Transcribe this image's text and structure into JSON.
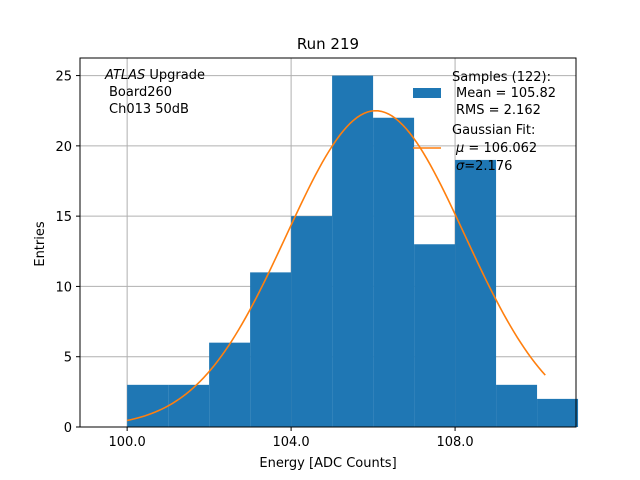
{
  "chart_data": {
    "type": "bar",
    "title": "Run 219",
    "xlabel": "Energy [ADC Counts]",
    "ylabel": "Entries",
    "xlim": [
      98.85,
      110.95
    ],
    "ylim": [
      0,
      26.25
    ],
    "x_ticks": [
      100.0,
      104.0,
      108.0
    ],
    "x_tick_labels": [
      "100.0",
      "104.0",
      "108.0"
    ],
    "y_ticks": [
      0,
      5,
      10,
      15,
      20,
      25
    ],
    "y_tick_labels": [
      "0",
      "5",
      "10",
      "15",
      "20",
      "25"
    ],
    "grid": true,
    "bin_edges": [
      100.0,
      101.0,
      102.0,
      103.0,
      104.0,
      105.0,
      106.0,
      107.0,
      108.0,
      109.0,
      110.0,
      111.0
    ],
    "values": [
      3,
      3,
      6,
      11,
      15,
      25,
      22,
      13,
      19,
      3,
      2
    ],
    "hist_color": "#1f77b4",
    "fit": {
      "mu": 106.062,
      "sigma": 2.176,
      "amplitude": 22.5,
      "x_range": [
        100.0,
        110.2
      ],
      "color": "#ff7f0e"
    },
    "annotation": {
      "line1_italic": "ATLAS",
      "line1_rest": " Upgrade",
      "line2": "Board260",
      "line3": "Ch013 50dB"
    },
    "legend": {
      "placement": "upper-right",
      "samples": {
        "label": "Samples (122):",
        "mean": "Mean = 105.82",
        "rms": "RMS = 2.162"
      },
      "fit": {
        "label": "Gaussian Fit:",
        "mu_symbol": "μ",
        "mu_text": " = 106.062",
        "sigma_symbol": "σ",
        "sigma_text": "=2.176"
      }
    }
  }
}
